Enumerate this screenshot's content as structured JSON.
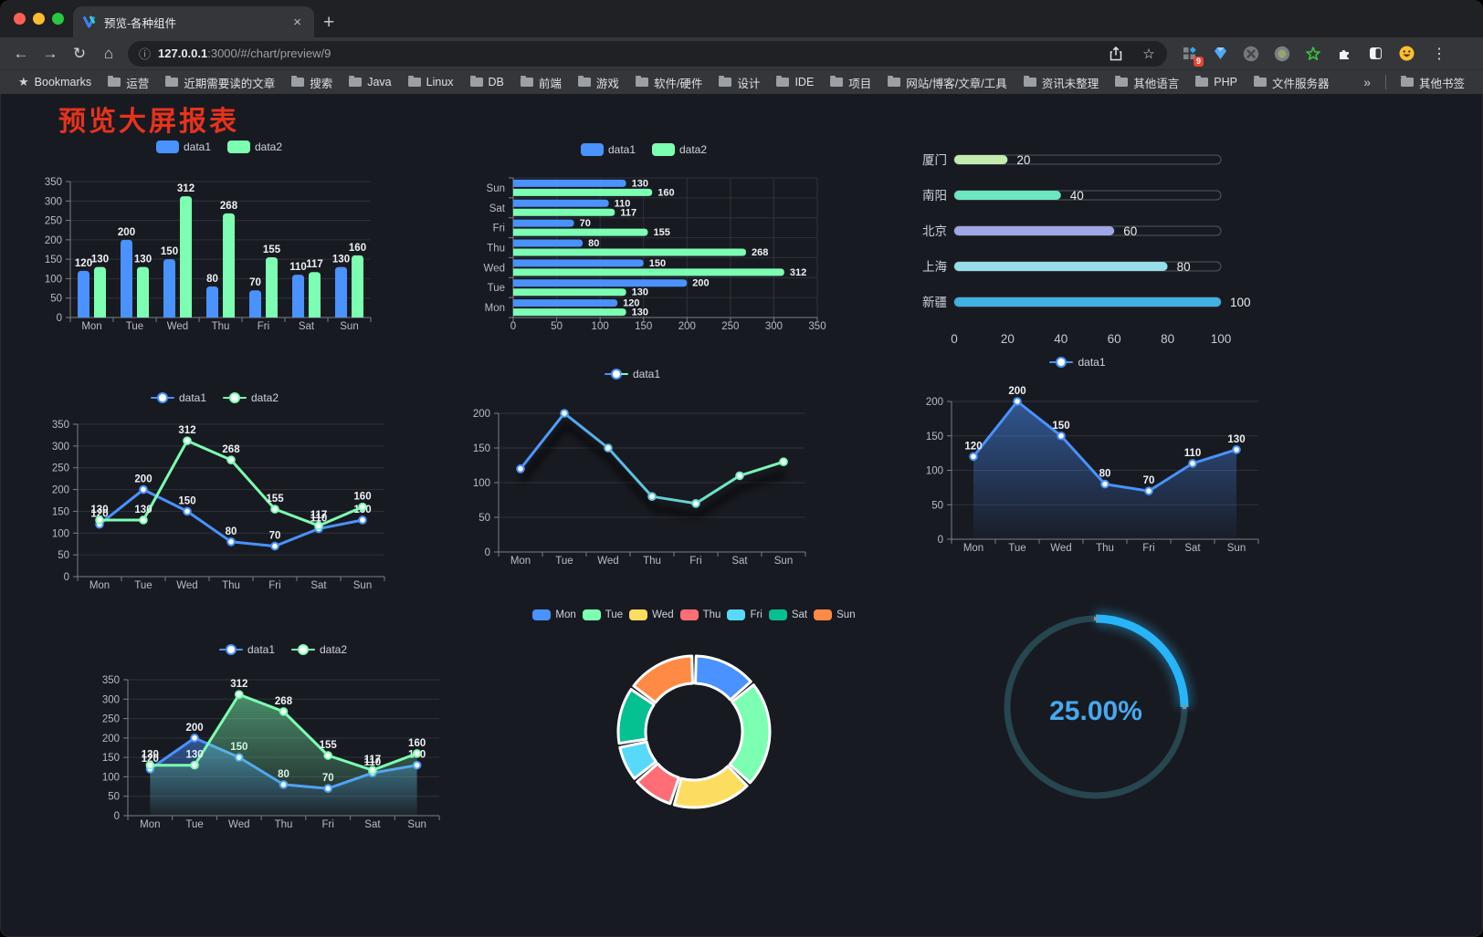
{
  "browser": {
    "tab_title": "预览-各种组件",
    "tab_close": "×",
    "new_tab": "+",
    "url": {
      "host": "127.0.0.1",
      "rest": ":3000/#/chart/preview/9"
    },
    "bookmarks_label": "Bookmarks",
    "bookmarks": [
      "运营",
      "近期需要读的文章",
      "搜索",
      "Java",
      "Linux",
      "DB",
      "前端",
      "游戏",
      "软件/硬件",
      "设计",
      "IDE",
      "项目",
      "网站/博客/文章/工具",
      "资讯未整理",
      "其他语言",
      "PHP",
      "文件服务器"
    ],
    "overflow_chevron": "»",
    "other_bookmarks": "其他书签",
    "extensions": {
      "badge": "9"
    }
  },
  "page": {
    "title": "预览大屏报表",
    "title_color": "#e7331c",
    "background": "#181a21"
  },
  "palette": [
    "#4992ff",
    "#7cffb2",
    "#fddd60",
    "#ff6e76",
    "#58d9f9",
    "#05c091",
    "#ff8a45"
  ],
  "chart_data": [
    {
      "id": "bar-grouped",
      "type": "bar",
      "categories": [
        "Mon",
        "Tue",
        "Wed",
        "Thu",
        "Fri",
        "Sat",
        "Sun"
      ],
      "series": [
        {
          "name": "data1",
          "color": "#4992ff",
          "values": [
            120,
            200,
            150,
            80,
            70,
            110,
            130
          ]
        },
        {
          "name": "data2",
          "color": "#7cffb2",
          "values": [
            130,
            130,
            312,
            268,
            155,
            117,
            160
          ]
        }
      ],
      "ylim": [
        0,
        350
      ],
      "ystep": 50,
      "legend_position": "top",
      "value_labels": true,
      "grid": true
    },
    {
      "id": "bar-horizontal",
      "type": "bar",
      "orientation": "horizontal",
      "categories": [
        "Mon",
        "Tue",
        "Wed",
        "Thu",
        "Fri",
        "Sat",
        "Sun"
      ],
      "series": [
        {
          "name": "data1",
          "color": "#4992ff",
          "values": [
            120,
            200,
            150,
            80,
            70,
            110,
            130
          ]
        },
        {
          "name": "data2",
          "color": "#7cffb2",
          "values": [
            130,
            130,
            312,
            268,
            155,
            117,
            160
          ]
        }
      ],
      "xlim": [
        0,
        350
      ],
      "xstep": 50,
      "legend_position": "top",
      "value_labels": true,
      "grid": true,
      "note": "Mon at bottom, Sun at top"
    },
    {
      "id": "city-progress",
      "type": "bar",
      "orientation": "horizontal-progress",
      "items": [
        {
          "label": "厦门",
          "value": 20,
          "color": "#c4ebad"
        },
        {
          "label": "南阳",
          "value": 40,
          "color": "#6be6c1"
        },
        {
          "label": "北京",
          "value": 60,
          "color": "#a0a7e6"
        },
        {
          "label": "上海",
          "value": 80,
          "color": "#96dee8"
        },
        {
          "label": "新疆",
          "value": 100,
          "color": "#3fb1e3"
        }
      ],
      "xlim": [
        0,
        100
      ],
      "xticks": [
        0,
        20,
        40,
        60,
        80,
        100
      ]
    },
    {
      "id": "line-two",
      "type": "line",
      "categories": [
        "Mon",
        "Tue",
        "Wed",
        "Thu",
        "Fri",
        "Sat",
        "Sun"
      ],
      "series": [
        {
          "name": "data1",
          "color": "#4992ff",
          "values": [
            120,
            200,
            150,
            80,
            70,
            110,
            130
          ]
        },
        {
          "name": "data2",
          "color": "#7cffb2",
          "values": [
            130,
            130,
            312,
            268,
            155,
            117,
            160
          ]
        }
      ],
      "ylim": [
        0,
        350
      ],
      "ystep": 50,
      "legend_position": "top",
      "value_labels": true,
      "grid": true
    },
    {
      "id": "line-gradient",
      "type": "line",
      "categories": [
        "Mon",
        "Tue",
        "Wed",
        "Thu",
        "Fri",
        "Sat",
        "Sun"
      ],
      "series": [
        {
          "name": "data1",
          "color": "#4992ff",
          "color_end": "#7cffb2",
          "values": [
            120,
            200,
            150,
            80,
            70,
            110,
            130
          ]
        }
      ],
      "ylim": [
        0,
        200
      ],
      "ystep": 50,
      "legend_position": "top",
      "value_labels": false,
      "shadow": true,
      "grid": true
    },
    {
      "id": "line-area",
      "type": "area",
      "categories": [
        "Mon",
        "Tue",
        "Wed",
        "Thu",
        "Fri",
        "Sat",
        "Sun"
      ],
      "series": [
        {
          "name": "data1",
          "color": "#4992ff",
          "area": true,
          "values": [
            120,
            200,
            150,
            80,
            70,
            110,
            130
          ]
        }
      ],
      "ylim": [
        0,
        200
      ],
      "ystep": 50,
      "legend_position": "top",
      "value_labels": true,
      "grid": true
    },
    {
      "id": "line-area-two",
      "type": "area",
      "categories": [
        "Mon",
        "Tue",
        "Wed",
        "Thu",
        "Fri",
        "Sat",
        "Sun"
      ],
      "series": [
        {
          "name": "data1",
          "color": "#4992ff",
          "area": true,
          "values": [
            120,
            200,
            150,
            80,
            70,
            110,
            130
          ]
        },
        {
          "name": "data2",
          "color": "#7cffb2",
          "area": true,
          "values": [
            130,
            130,
            312,
            268,
            155,
            117,
            160
          ]
        }
      ],
      "ylim": [
        0,
        350
      ],
      "ystep": 50,
      "legend_position": "top",
      "value_labels": true,
      "grid": true
    },
    {
      "id": "donut",
      "type": "pie",
      "categories": [
        "Mon",
        "Tue",
        "Wed",
        "Thu",
        "Fri",
        "Sat",
        "Sun"
      ],
      "values": [
        120,
        200,
        150,
        80,
        70,
        110,
        130
      ],
      "colors": [
        "#4992ff",
        "#7cffb2",
        "#fddd60",
        "#ff6e76",
        "#58d9f9",
        "#05c091",
        "#ff8a45"
      ],
      "inner_radius_ratio": 0.64,
      "border_color": "#ffffff",
      "legend_position": "top",
      "start_angle": "top-clockwise"
    },
    {
      "id": "gauge",
      "type": "gauge",
      "value": 25,
      "display": "25.00%",
      "color": "#28b4f8",
      "track_color": "#27464f",
      "text_color": "#46a9ef"
    }
  ]
}
